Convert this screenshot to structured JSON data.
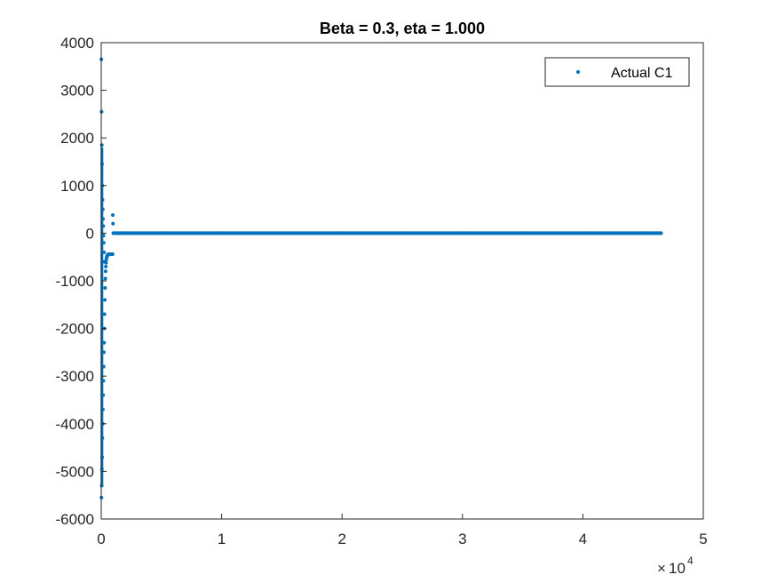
{
  "chart_data": {
    "type": "scatter",
    "title": "Beta = 0.3, eta = 1.000",
    "xlabel": "",
    "ylabel": "",
    "xlim": [
      0,
      50000
    ],
    "ylim": [
      -6000,
      4000
    ],
    "x_ticks": [
      0,
      10000,
      20000,
      30000,
      40000,
      50000
    ],
    "x_tick_labels": [
      "0",
      "1",
      "2",
      "3",
      "4",
      "5"
    ],
    "x_exponent_label": "10",
    "x_exponent_power": "4",
    "x_exponent_prefix": "×",
    "y_ticks": [
      -6000,
      -5000,
      -4000,
      -3000,
      -2000,
      -1000,
      0,
      1000,
      2000,
      3000,
      4000
    ],
    "y_tick_labels": [
      "-6000",
      "-5000",
      "-4000",
      "-3000",
      "-2000",
      "-1000",
      "0",
      "1000",
      "2000",
      "3000",
      "4000"
    ],
    "grid": false,
    "legend_position": "top-right",
    "series": [
      {
        "name": "Actual C1",
        "color": "#0072BD",
        "x": [
          10,
          20,
          30,
          40,
          50,
          60,
          70,
          80,
          90,
          100,
          110,
          120,
          130,
          140,
          150,
          160,
          170,
          180,
          190,
          200,
          210,
          220,
          230,
          240,
          250,
          260,
          280,
          300,
          320,
          340,
          360,
          380,
          400,
          420,
          440,
          460,
          480,
          500,
          520,
          540,
          560,
          580,
          600,
          620,
          640,
          660,
          680,
          700,
          720,
          740,
          760,
          780,
          800,
          820,
          840,
          860,
          880,
          900,
          920,
          940,
          960,
          980,
          1000,
          1200,
          1500,
          2000,
          3000,
          5000,
          10000,
          15000,
          20000,
          25000,
          30000,
          35000,
          40000,
          45000,
          46500
        ],
        "y": [
          3650,
          -5550,
          2550,
          -5300,
          1850,
          -4950,
          1450,
          -4700,
          1000,
          -4300,
          700,
          -4000,
          500,
          -3700,
          300,
          -3400,
          150,
          -3100,
          -50,
          -2800,
          -200,
          -2500,
          -400,
          -2300,
          -600,
          -2000,
          -1700,
          -1400,
          -1150,
          -950,
          -800,
          -700,
          -620,
          -560,
          -520,
          -500,
          -480,
          -470,
          -460,
          -455,
          -450,
          -448,
          -446,
          -445,
          -444,
          -443,
          -442,
          -441,
          -440,
          -440,
          -440,
          -440,
          -440,
          -440,
          -440,
          -440,
          -440,
          -440,
          -440,
          -440,
          380,
          200,
          0,
          0,
          0,
          0,
          0,
          0,
          0,
          0,
          0,
          0,
          0,
          0,
          0,
          0,
          0
        ]
      }
    ]
  }
}
